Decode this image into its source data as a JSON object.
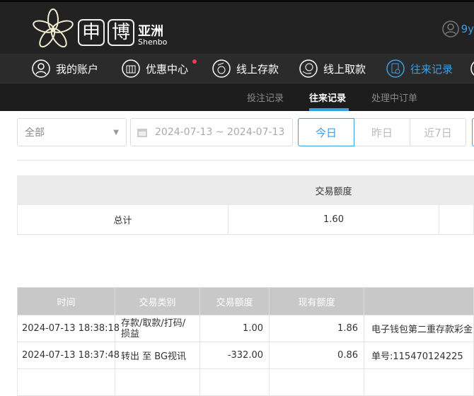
{
  "header": {
    "logo_chars": [
      "申",
      "博"
    ],
    "logo_cn": "亚洲",
    "logo_en": "Shenbo",
    "username": "9y"
  },
  "nav": [
    {
      "label": "我的账户",
      "icon": "user-icon"
    },
    {
      "label": "优惠中心",
      "icon": "gift-icon",
      "badge": true
    },
    {
      "label": "线上存款",
      "icon": "deposit-icon"
    },
    {
      "label": "线上取款",
      "icon": "withdraw-icon"
    },
    {
      "label": "往来记录",
      "icon": "records-icon",
      "active": true
    }
  ],
  "subnav": [
    {
      "label": "投注记录"
    },
    {
      "label": "往来记录",
      "active": true
    },
    {
      "label": "处理中订单"
    }
  ],
  "filters": {
    "type_select": "全部",
    "date_range": "2024-07-13 ~ 2024-07-13",
    "quick": [
      "今日",
      "昨日",
      "近7日"
    ],
    "active_quick": "今日"
  },
  "summary": {
    "header": "交易额度",
    "row_label": "总计",
    "amount": "1.60"
  },
  "details": {
    "columns": [
      "时间",
      "交易类别",
      "交易额度",
      "现有额度",
      ""
    ],
    "rows": [
      [
        "2024-07-13 18:38:18",
        "存款/取款/打码/损益",
        "1.00",
        "1.86",
        "电子钱包第二重存款彩金"
      ],
      [
        "2024-07-13 18:37:48",
        "转出 至 BG视讯",
        "-332.00",
        "0.86",
        "单号:115470124225"
      ]
    ]
  },
  "colors": {
    "accent": "#3a9ee4",
    "badge": "#e8405a"
  }
}
